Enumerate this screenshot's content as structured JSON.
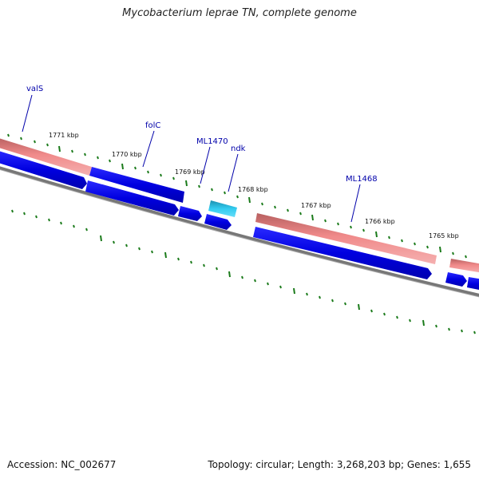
{
  "header": {
    "title": "Mycobacterium leprae TN, complete genome"
  },
  "footer": {
    "accession": "Accession: NC_002677",
    "summary": "Topology: circular; Length: 3,268,203 bp; Genes: 1,655"
  },
  "colors": {
    "rna_pink": "#f08080",
    "gene_blue": "#0000e6",
    "selected_cyan": "#33ccf0",
    "tick_green": "#1a7a1a",
    "backbone_gray": "#777777",
    "label_blue": "#0000aa"
  },
  "scale": {
    "unit": "kbp",
    "labels": [
      "1771 kbp",
      "1770 kbp",
      "1769 kbp",
      "1768 kbp",
      "1767 kbp",
      "1766 kbp",
      "1765 kbp"
    ]
  },
  "gene_labels": [
    "valS",
    "folC",
    "ML1470",
    "ndk",
    "ML1468"
  ]
}
